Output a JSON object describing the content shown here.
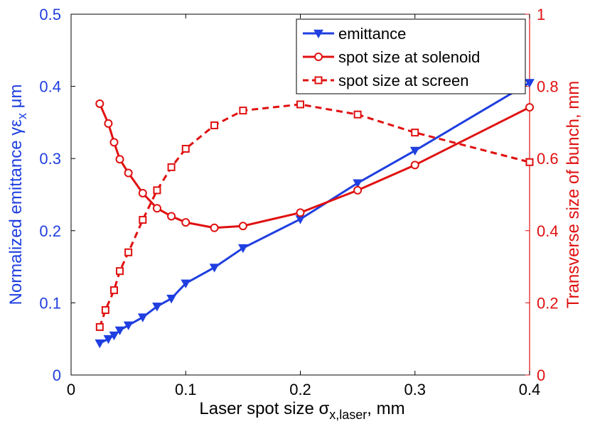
{
  "chart_data": {
    "type": "line",
    "title": "",
    "xlabel": "Laser spot size σ",
    "xlabel_sub": "x,laser",
    "xlabel_suffix": ", mm",
    "ylabel_left": "Normalized emittance γε",
    "ylabel_left_sub": "x",
    "ylabel_left_suffix": " μm",
    "ylabel_right": "Transverse size of bunch, mm",
    "xlim": [
      0,
      0.4
    ],
    "ylim_left": [
      0,
      0.5
    ],
    "ylim_right": [
      0,
      1
    ],
    "x_ticks": [
      "0",
      "0.1",
      "0.2",
      "0.3",
      "0.4"
    ],
    "y_left_ticks": [
      "0",
      "0.1",
      "0.2",
      "0.3",
      "0.4",
      "0.5"
    ],
    "y_right_ticks": [
      "0",
      "0.2",
      "0.4",
      "0.6",
      "0.8",
      "1"
    ],
    "grid": false,
    "legend_position": "top-right",
    "series": [
      {
        "name": "emittance",
        "axis": "left",
        "color": "#1f3fe0",
        "line": "solid",
        "marker": "triangle-down",
        "x": [
          0.025,
          0.0325,
          0.0375,
          0.0425,
          0.05,
          0.0625,
          0.075,
          0.0875,
          0.1,
          0.125,
          0.15,
          0.2,
          0.25,
          0.3,
          0.4
        ],
        "y": [
          0.044,
          0.05,
          0.055,
          0.062,
          0.069,
          0.08,
          0.095,
          0.106,
          0.127,
          0.149,
          0.176,
          0.216,
          0.266,
          0.311,
          0.405
        ]
      },
      {
        "name": "spot size at solenoid",
        "axis": "right",
        "color": "#e01010",
        "line": "solid",
        "marker": "circle",
        "x": [
          0.025,
          0.0325,
          0.0375,
          0.0425,
          0.05,
          0.0625,
          0.075,
          0.0875,
          0.1,
          0.125,
          0.15,
          0.2,
          0.25,
          0.3,
          0.4
        ],
        "y": [
          0.752,
          0.697,
          0.645,
          0.598,
          0.56,
          0.504,
          0.462,
          0.44,
          0.423,
          0.408,
          0.413,
          0.45,
          0.512,
          0.582,
          0.742
        ]
      },
      {
        "name": "spot size at screen",
        "axis": "right",
        "color": "#e01010",
        "line": "dashed",
        "marker": "square",
        "x": [
          0.025,
          0.03,
          0.0375,
          0.0425,
          0.05,
          0.0625,
          0.075,
          0.0875,
          0.1,
          0.125,
          0.15,
          0.2,
          0.25,
          0.3,
          0.4
        ],
        "y": [
          0.133,
          0.18,
          0.235,
          0.288,
          0.34,
          0.43,
          0.512,
          0.576,
          0.627,
          0.692,
          0.733,
          0.75,
          0.722,
          0.672,
          0.59
        ]
      }
    ]
  },
  "colors": {
    "left_axis": "#1f3fe0",
    "right_axis": "#e01010",
    "axes": "#000000"
  }
}
